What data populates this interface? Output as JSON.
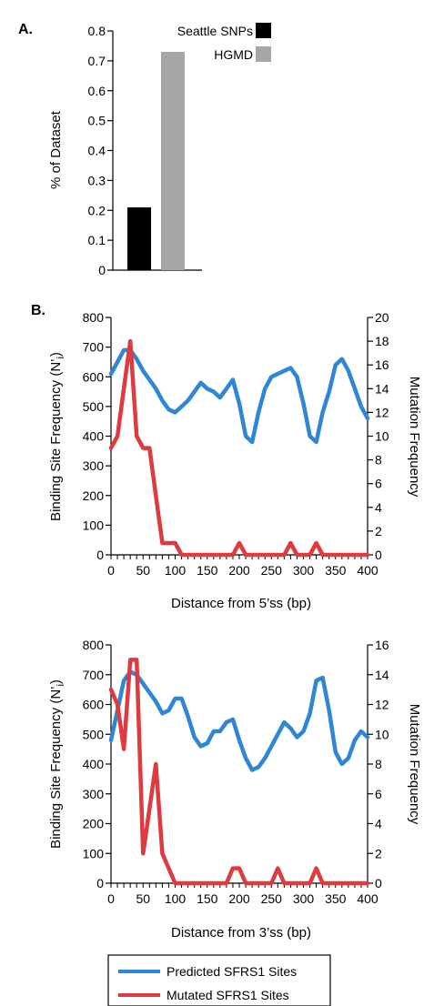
{
  "chart_data": [
    {
      "panel": "A.",
      "type": "bar",
      "categories": [
        "Seattle SNPs",
        "HGMD"
      ],
      "values": [
        0.21,
        0.73
      ],
      "colors": [
        "#000000",
        "#a6a6a6"
      ],
      "ylabel": "% of Dataset",
      "ylim": [
        0,
        0.8
      ],
      "yticks": [
        "0",
        "0.1",
        "0.2",
        "0.3",
        "0.4",
        "0.5",
        "0.6",
        "0.7",
        "0.8"
      ],
      "legend": [
        "Seattle SNPs",
        "HGMD"
      ],
      "legend_position": "top-right",
      "grid": false
    },
    {
      "panel": "B.",
      "type": "line",
      "xlabel": "Distance from 5’ss (bp)",
      "ylabel": "Binding Site Frequency (N’i)",
      "ylabel_main": "Binding Site Frequency (N’",
      "ylabel_sub": "i",
      "ylabel_close": ")",
      "y2label": "Mutation Frequency",
      "xlim": [
        0,
        400
      ],
      "ylim": [
        0,
        800
      ],
      "y2lim": [
        0,
        20
      ],
      "xticks": [
        "0",
        "50",
        "100",
        "150",
        "200",
        "250",
        "300",
        "350",
        "400"
      ],
      "yticks": [
        "0",
        "100",
        "200",
        "300",
        "400",
        "500",
        "600",
        "700",
        "800"
      ],
      "y2ticks": [
        "0",
        "2",
        "4",
        "6",
        "8",
        "10",
        "12",
        "14",
        "16",
        "18",
        "20"
      ],
      "grid": false,
      "series": [
        {
          "name": "Predicted SFRS1 Sites",
          "axis": "left",
          "color": "#2e86d4",
          "x": [
            0,
            10,
            20,
            30,
            40,
            50,
            60,
            70,
            80,
            90,
            100,
            110,
            120,
            130,
            140,
            150,
            160,
            170,
            180,
            190,
            200,
            210,
            220,
            230,
            240,
            250,
            260,
            270,
            280,
            290,
            300,
            310,
            320,
            330,
            340,
            350,
            360,
            370,
            380,
            390,
            400
          ],
          "y": [
            610,
            650,
            690,
            690,
            660,
            620,
            590,
            560,
            520,
            490,
            480,
            500,
            520,
            550,
            580,
            560,
            550,
            530,
            560,
            590,
            510,
            400,
            380,
            480,
            560,
            600,
            610,
            620,
            630,
            600,
            510,
            400,
            380,
            480,
            550,
            640,
            660,
            620,
            560,
            500,
            460
          ]
        },
        {
          "name": "Mutated SFRS1 Sites",
          "axis": "right",
          "color": "#dd3b3f",
          "x": [
            0,
            10,
            20,
            30,
            40,
            50,
            60,
            70,
            80,
            90,
            100,
            110,
            120,
            130,
            140,
            150,
            160,
            170,
            180,
            190,
            200,
            210,
            220,
            230,
            240,
            250,
            260,
            270,
            280,
            290,
            300,
            310,
            320,
            330,
            340,
            350,
            360,
            370,
            380,
            390,
            400
          ],
          "y": [
            9,
            10,
            14,
            18,
            10,
            9,
            9,
            5,
            1,
            1,
            1,
            0,
            0,
            0,
            0,
            0,
            0,
            0,
            0,
            0,
            1,
            0,
            0,
            0,
            0,
            0,
            0,
            0,
            1,
            0,
            0,
            0,
            1,
            0,
            0,
            0,
            0,
            0,
            0,
            0,
            0
          ]
        }
      ]
    },
    {
      "type": "line",
      "xlabel": "Distance from 3’ss (bp)",
      "ylabel": "Binding Site Frequency (N’i)",
      "ylabel_main": "Binding Site Frequency (N’",
      "ylabel_sub": "i",
      "ylabel_close": ")",
      "y2label": "Mutation Frequency",
      "xlim": [
        0,
        400
      ],
      "ylim": [
        0,
        800
      ],
      "y2lim": [
        0,
        16
      ],
      "xticks": [
        "0",
        "50",
        "100",
        "150",
        "200",
        "250",
        "300",
        "350",
        "400"
      ],
      "yticks": [
        "0",
        "100",
        "200",
        "300",
        "400",
        "500",
        "600",
        "700",
        "800"
      ],
      "y2ticks": [
        "0",
        "2",
        "4",
        "6",
        "8",
        "10",
        "12",
        "14",
        "16"
      ],
      "grid": false,
      "series": [
        {
          "name": "Predicted SFRS1 Sites",
          "axis": "left",
          "color": "#2e86d4",
          "x": [
            0,
            10,
            20,
            30,
            40,
            50,
            60,
            70,
            80,
            90,
            100,
            110,
            120,
            130,
            140,
            150,
            160,
            170,
            180,
            190,
            200,
            210,
            220,
            230,
            240,
            250,
            260,
            270,
            280,
            290,
            300,
            310,
            320,
            330,
            340,
            350,
            360,
            370,
            380,
            390,
            400
          ],
          "y": [
            480,
            580,
            680,
            710,
            700,
            670,
            640,
            610,
            570,
            580,
            620,
            620,
            560,
            490,
            460,
            470,
            510,
            510,
            540,
            550,
            480,
            420,
            380,
            390,
            420,
            460,
            500,
            540,
            520,
            490,
            510,
            570,
            680,
            690,
            580,
            440,
            400,
            420,
            480,
            510,
            490
          ]
        },
        {
          "name": "Mutated SFRS1 Sites",
          "axis": "right",
          "color": "#dd3b3f",
          "x": [
            0,
            10,
            20,
            30,
            40,
            50,
            60,
            70,
            80,
            90,
            100,
            110,
            120,
            130,
            140,
            150,
            160,
            170,
            180,
            190,
            200,
            210,
            220,
            230,
            240,
            250,
            260,
            270,
            280,
            290,
            300,
            310,
            320,
            330,
            340,
            350,
            360,
            370,
            380,
            390,
            400
          ],
          "y": [
            13,
            12,
            9,
            15,
            15,
            2,
            5,
            8,
            2,
            1,
            0,
            0,
            0,
            0,
            0,
            0,
            0,
            0,
            0,
            1,
            1,
            0,
            0,
            0,
            0,
            0,
            1,
            0,
            0,
            0,
            0,
            0,
            1,
            0,
            0,
            0,
            0,
            0,
            0,
            0,
            0
          ]
        }
      ]
    }
  ],
  "legend": {
    "items": [
      {
        "label": "Predicted SFRS1 Sites",
        "color": "#2e86d4"
      },
      {
        "label": "Mutated SFRS1 Sites",
        "color": "#dd3b3f"
      }
    ]
  }
}
